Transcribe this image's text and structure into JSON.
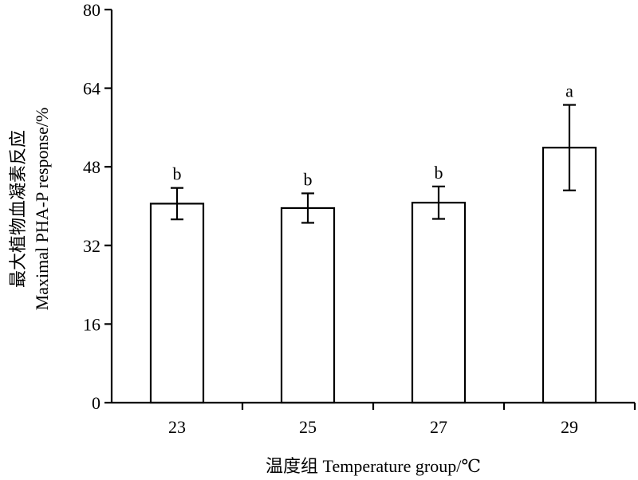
{
  "chart_data": {
    "type": "bar",
    "categories": [
      "23",
      "25",
      "27",
      "29"
    ],
    "values": [
      40.5,
      39.6,
      40.7,
      51.9
    ],
    "errors": [
      3.2,
      3.0,
      3.3,
      8.7
    ],
    "significance": [
      "b",
      "b",
      "b",
      "a"
    ],
    "xlabel": "温度组 Temperature group/℃",
    "ylabel_cn": "最大植物血凝素反应",
    "ylabel_en": "Maximal PHA-P response/%",
    "ylim": [
      0,
      80
    ],
    "yticks": [
      0,
      16,
      32,
      48,
      64,
      80
    ],
    "grid": false,
    "colors": {
      "bar_fill": "#ffffff",
      "stroke": "#000000"
    }
  }
}
